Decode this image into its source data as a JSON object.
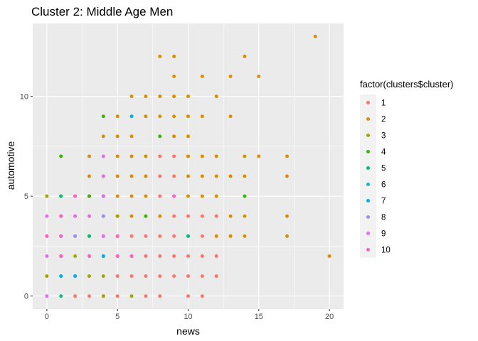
{
  "chart_data": {
    "type": "scatter",
    "title": "Cluster 2: Middle Age Men",
    "xlabel": "news",
    "ylabel": "automotive",
    "xlim": [
      -1,
      21
    ],
    "ylim": [
      -0.65,
      13.65
    ],
    "x_ticks": [
      0,
      5,
      10,
      15,
      20
    ],
    "y_ticks": [
      0,
      5,
      10
    ],
    "grid": true,
    "legend_position": "right",
    "legend_title": "factor(clusters$cluster)",
    "series": [
      {
        "name": "1",
        "color": "#F8766D",
        "points": [
          [
            2,
            0
          ],
          [
            3,
            0
          ],
          [
            4,
            0
          ],
          [
            5,
            0
          ],
          [
            7,
            0
          ],
          [
            8,
            0
          ],
          [
            10,
            0
          ],
          [
            11,
            0
          ],
          [
            5,
            1
          ],
          [
            6,
            1
          ],
          [
            7,
            1
          ],
          [
            8,
            1
          ],
          [
            9,
            1
          ],
          [
            10,
            1
          ],
          [
            11,
            1
          ],
          [
            12,
            1
          ],
          [
            5,
            2
          ],
          [
            6,
            2
          ],
          [
            7,
            2
          ],
          [
            8,
            2
          ],
          [
            9,
            2
          ],
          [
            10,
            2
          ],
          [
            11,
            2
          ],
          [
            12,
            2
          ],
          [
            5,
            3
          ],
          [
            6,
            3
          ],
          [
            7,
            3
          ],
          [
            8,
            3
          ],
          [
            9,
            3
          ],
          [
            10,
            3
          ],
          [
            11,
            3
          ],
          [
            9,
            4
          ],
          [
            10,
            4
          ],
          [
            11,
            4
          ],
          [
            12,
            4
          ],
          [
            8,
            5
          ],
          [
            8,
            6
          ],
          [
            9,
            6
          ],
          [
            8,
            7
          ],
          [
            9,
            7
          ]
        ]
      },
      {
        "name": "2",
        "color": "#D89000",
        "points": [
          [
            19,
            13
          ],
          [
            8,
            12
          ],
          [
            9,
            12
          ],
          [
            14,
            12
          ],
          [
            9,
            11
          ],
          [
            11,
            11
          ],
          [
            13,
            11
          ],
          [
            15,
            11
          ],
          [
            6,
            10
          ],
          [
            7,
            10
          ],
          [
            8,
            10
          ],
          [
            9,
            10
          ],
          [
            10,
            10
          ],
          [
            12,
            10
          ],
          [
            5,
            9
          ],
          [
            6,
            9
          ],
          [
            7,
            9
          ],
          [
            8,
            9
          ],
          [
            9,
            9
          ],
          [
            10,
            9
          ],
          [
            11,
            9
          ],
          [
            13,
            9
          ],
          [
            4,
            8
          ],
          [
            5,
            8
          ],
          [
            6,
            8
          ],
          [
            9,
            8
          ],
          [
            10,
            8
          ],
          [
            3,
            7
          ],
          [
            5,
            7
          ],
          [
            6,
            7
          ],
          [
            7,
            7
          ],
          [
            10,
            7
          ],
          [
            11,
            7
          ],
          [
            12,
            7
          ],
          [
            14,
            7
          ],
          [
            15,
            7
          ],
          [
            17,
            7
          ],
          [
            3,
            6
          ],
          [
            4,
            6
          ],
          [
            5,
            6
          ],
          [
            6,
            6
          ],
          [
            7,
            6
          ],
          [
            10,
            6
          ],
          [
            11,
            6
          ],
          [
            12,
            6
          ],
          [
            13,
            6
          ],
          [
            14,
            6
          ],
          [
            17,
            6
          ],
          [
            3,
            5
          ],
          [
            4,
            5
          ],
          [
            5,
            5
          ],
          [
            6,
            5
          ],
          [
            7,
            5
          ],
          [
            10,
            5
          ],
          [
            11,
            5
          ],
          [
            12,
            5
          ],
          [
            5,
            4
          ],
          [
            6,
            4
          ],
          [
            8,
            4
          ],
          [
            13,
            4
          ],
          [
            14,
            4
          ],
          [
            17,
            4
          ],
          [
            12,
            3
          ],
          [
            13,
            3
          ],
          [
            14,
            3
          ],
          [
            17,
            3
          ],
          [
            20,
            2
          ]
        ]
      },
      {
        "name": "3",
        "color": "#A3A500",
        "points": [
          [
            0,
            5
          ],
          [
            0,
            1
          ],
          [
            1,
            2
          ],
          [
            2,
            3
          ],
          [
            2,
            2
          ],
          [
            3,
            1
          ],
          [
            4,
            1
          ],
          [
            4,
            0
          ],
          [
            6,
            0
          ],
          [
            2,
            4
          ],
          [
            3,
            4
          ],
          [
            4,
            3
          ],
          [
            3,
            2
          ],
          [
            5,
            4
          ],
          [
            4,
            4
          ],
          [
            1,
            4
          ],
          [
            2,
            5
          ],
          [
            3,
            3
          ]
        ]
      },
      {
        "name": "4",
        "color": "#39B600",
        "points": [
          [
            4,
            9
          ],
          [
            8,
            8
          ],
          [
            1,
            7
          ],
          [
            1,
            5
          ],
          [
            7,
            4
          ],
          [
            14,
            5
          ],
          [
            3,
            5
          ]
        ]
      },
      {
        "name": "5",
        "color": "#00BF7D",
        "points": [
          [
            1,
            0
          ],
          [
            2,
            1
          ],
          [
            1,
            3
          ],
          [
            3,
            3
          ],
          [
            10,
            3
          ],
          [
            1,
            5
          ]
        ]
      },
      {
        "name": "6",
        "color": "#00BFC4",
        "points": [
          [
            1,
            1
          ],
          [
            4,
            2
          ],
          [
            1,
            3
          ]
        ]
      },
      {
        "name": "7",
        "color": "#00B0F6",
        "points": [
          [
            6,
            9
          ],
          [
            1,
            1
          ],
          [
            4,
            2
          ],
          [
            2,
            1
          ],
          [
            4,
            5
          ]
        ]
      },
      {
        "name": "8",
        "color": "#9590FF",
        "points": [
          [
            2,
            3
          ],
          [
            4,
            4
          ]
        ]
      },
      {
        "name": "9",
        "color": "#E76BF3",
        "points": [
          [
            0,
            4
          ],
          [
            0,
            3
          ],
          [
            0,
            2
          ],
          [
            0,
            0
          ],
          [
            1,
            4
          ],
          [
            1,
            2
          ],
          [
            2,
            4
          ],
          [
            4,
            7
          ],
          [
            4,
            6
          ],
          [
            4,
            5
          ],
          [
            4,
            3
          ],
          [
            9,
            5
          ],
          [
            3,
            4
          ],
          [
            2,
            5
          ]
        ]
      },
      {
        "name": "10",
        "color": "#FF62BC",
        "points": [
          [
            1,
            4
          ],
          [
            1,
            3
          ],
          [
            2,
            5
          ],
          [
            3,
            2
          ],
          [
            5,
            3
          ],
          [
            5,
            2
          ],
          [
            6,
            2
          ],
          [
            9,
            5
          ],
          [
            0,
            3
          ],
          [
            1,
            2
          ]
        ]
      }
    ]
  }
}
